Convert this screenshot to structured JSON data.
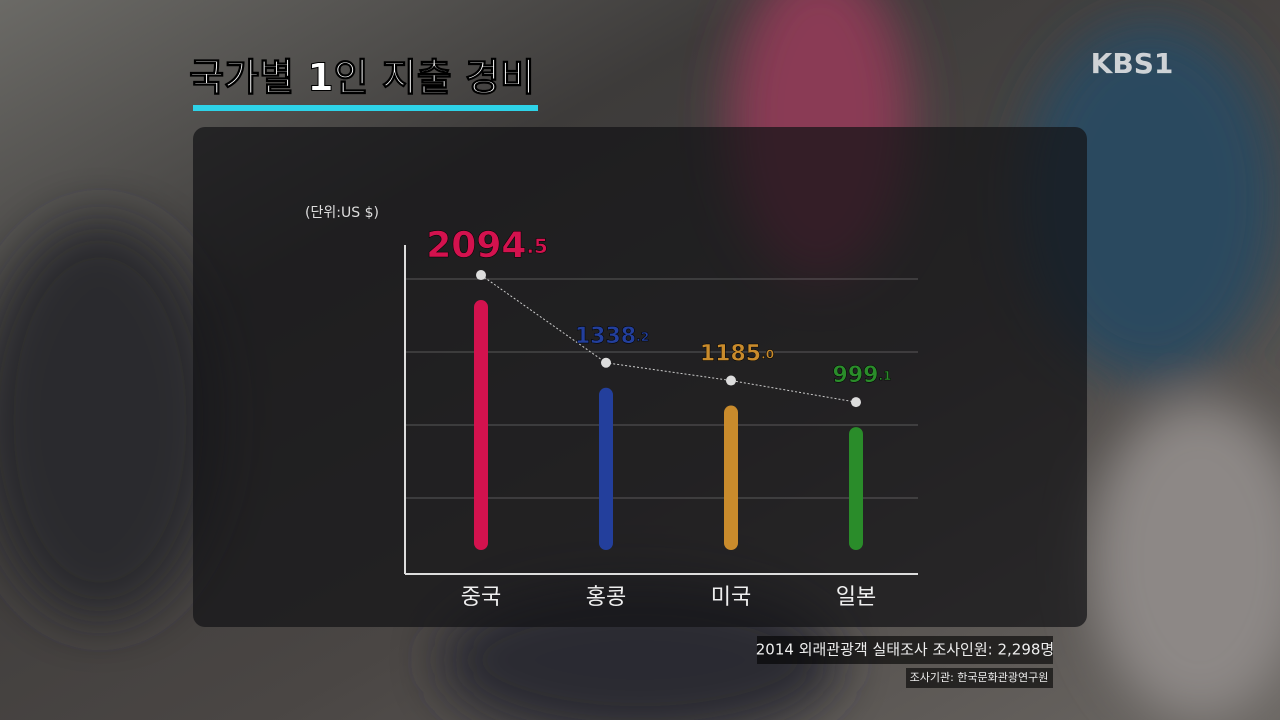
{
  "chart_data": {
    "type": "bar",
    "title": "국가별 1인 지출 경비",
    "channel": "KBS1",
    "unit": "(단위:US $)",
    "categories": [
      "중국",
      "홍콩",
      "미국",
      "일본"
    ],
    "values": [
      2094.5,
      1338.2,
      1185.0,
      999.1
    ],
    "value_labels": [
      "2094.5",
      "1338.2",
      "1185.0",
      "999.1"
    ],
    "colors": [
      "#d3124e",
      "#233f9c",
      "#c98b2c",
      "#2a8c2a"
    ],
    "ylim": [
      0,
      2500
    ],
    "source": "2014 외래관광객 실태조사  조사인원: 2,298명",
    "agency": "조사기관: 한국문화관광연구원"
  }
}
